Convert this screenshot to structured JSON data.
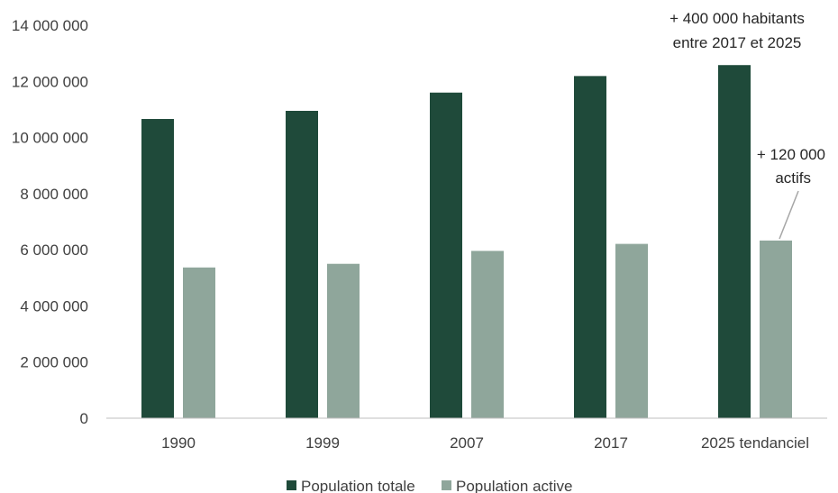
{
  "chart_data": {
    "type": "bar",
    "categories": [
      "1990",
      "1999",
      "2007",
      "2017",
      "2025 tendanciel"
    ],
    "series": [
      {
        "name": "Population totale",
        "color": "#1f4a3a",
        "values": [
          10660000,
          10950000,
          11600000,
          12190000,
          12580000
        ]
      },
      {
        "name": "Population active",
        "color": "#8fa69b",
        "values": [
          5370000,
          5500000,
          5960000,
          6210000,
          6330000
        ]
      }
    ],
    "ylim": [
      0,
      14000000
    ],
    "yticks": [
      0,
      2000000,
      4000000,
      6000000,
      8000000,
      10000000,
      12000000,
      14000000
    ],
    "ytick_labels": [
      "0",
      "2 000 000",
      "4 000 000",
      "6 000 000",
      "8 000 000",
      "10 000 000",
      "12 000 000",
      "14 000 000"
    ],
    "annotations": [
      {
        "lines": [
          "+ 400 000 habitants",
          "entre 2017 et 2025"
        ],
        "category": "2025 tendanciel",
        "series": "Population totale"
      },
      {
        "lines": [
          "+ 120 000",
          "actifs"
        ],
        "category": "2025 tendanciel",
        "series": "Population active"
      }
    ],
    "legend_position": "bottom",
    "grid": false
  }
}
